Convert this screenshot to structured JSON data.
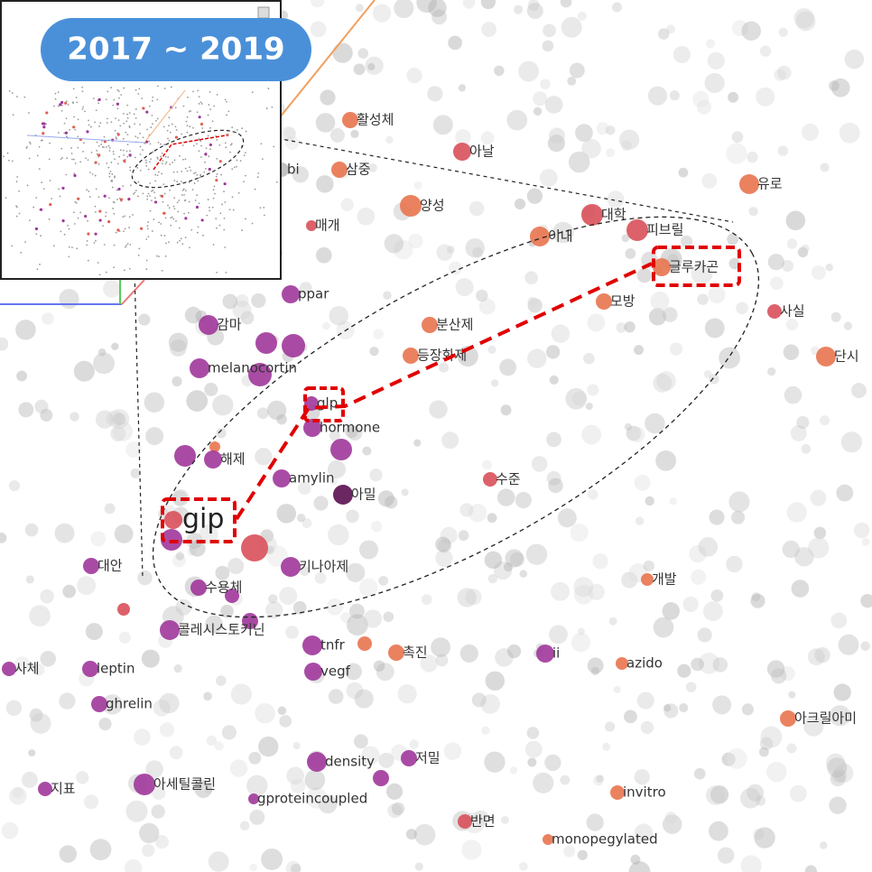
{
  "inset": {
    "title": "2017 ~ 2019"
  },
  "nodes": [
    {
      "label": "활성체"
    },
    {
      "label": "아날"
    },
    {
      "label": "삼중"
    },
    {
      "label": "bi"
    },
    {
      "label": "유로"
    },
    {
      "label": "양성"
    },
    {
      "label": "매개"
    },
    {
      "label": "대학"
    },
    {
      "label": "피브릴"
    },
    {
      "label": "이내"
    },
    {
      "label": "글루카곤"
    },
    {
      "label": "ppar"
    },
    {
      "label": "모방"
    },
    {
      "label": "사실"
    },
    {
      "label": "감마"
    },
    {
      "label": "분산제"
    },
    {
      "label": "등장화제"
    },
    {
      "label": "단시"
    },
    {
      "label": "melanocortin"
    },
    {
      "label": "glp"
    },
    {
      "label": "hormone"
    },
    {
      "label": "해제"
    },
    {
      "label": "amylin"
    },
    {
      "label": "아밀"
    },
    {
      "label": "수준"
    },
    {
      "label": "gip"
    },
    {
      "label": "대안"
    },
    {
      "label": "키나아제"
    },
    {
      "label": "개발"
    },
    {
      "label": "수용체"
    },
    {
      "label": "콜레시스토키닌"
    },
    {
      "label": "tnfr"
    },
    {
      "label": "촉진"
    },
    {
      "label": "ii"
    },
    {
      "label": "azido"
    },
    {
      "label": "사체"
    },
    {
      "label": "leptin"
    },
    {
      "label": "vegf"
    },
    {
      "label": "ghrelin"
    },
    {
      "label": "아크릴아미"
    },
    {
      "label": "density"
    },
    {
      "label": "저밀"
    },
    {
      "label": "지표"
    },
    {
      "label": "아세틸콜린"
    },
    {
      "label": "gproteincoupled"
    },
    {
      "label": "invitro"
    },
    {
      "label": "반면"
    },
    {
      "label": "monopegylated"
    }
  ]
}
